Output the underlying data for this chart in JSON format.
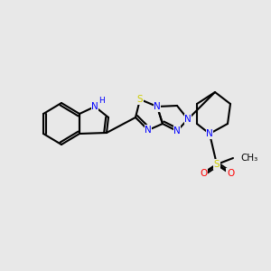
{
  "bg_color": "#e8e8e8",
  "bond_color": "#000000",
  "bond_width": 1.5,
  "atom_colors": {
    "N": "#0000ff",
    "S": "#cccc00",
    "O": "#ff0000",
    "C": "#000000",
    "H": "#000000"
  },
  "font_size": 7.5,
  "font_size_small": 6.5
}
